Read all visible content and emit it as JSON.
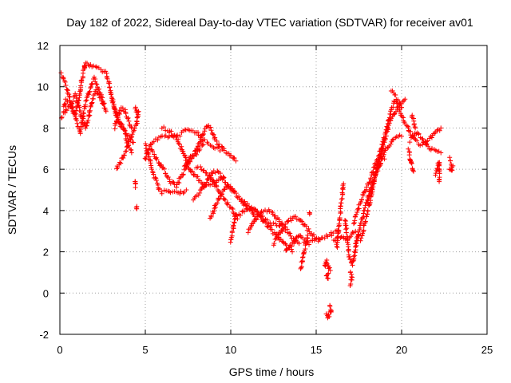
{
  "chart_data": {
    "type": "scatter",
    "title": "Day 182 of 2022, Sidereal Day-to-day VTEC variation (SDTVAR) for receiver av01",
    "xlabel": "GPS time / hours",
    "ylabel": "SDTVAR / TECUs",
    "xlim": [
      0,
      25
    ],
    "ylim": [
      -2,
      12
    ],
    "xticks": [
      0,
      5,
      10,
      15,
      20,
      25
    ],
    "yticks": [
      -2,
      0,
      2,
      4,
      6,
      8,
      10,
      12
    ],
    "xtick_labels": [
      "0",
      "5",
      "10",
      "15",
      "20",
      "25"
    ],
    "ytick_labels": [
      "-2",
      "0",
      "2",
      "4",
      "6",
      "8",
      "10",
      "12"
    ],
    "grid": true,
    "marker": "+",
    "color": "#ff0000",
    "series_tracks": [
      [
        [
          0.1,
          10.6
        ],
        [
          0.3,
          10.2
        ],
        [
          0.5,
          9.6
        ],
        [
          0.7,
          9.0
        ],
        [
          0.9,
          8.7
        ],
        [
          1.1,
          9.4
        ],
        [
          1.3,
          10.4
        ],
        [
          1.5,
          11.2
        ],
        [
          1.8,
          11.0
        ],
        [
          2.1,
          10.9
        ],
        [
          2.4,
          10.8
        ],
        [
          2.7,
          10.7
        ],
        [
          2.9,
          10.0
        ],
        [
          3.1,
          9.2
        ],
        [
          3.3,
          8.6
        ],
        [
          3.5,
          8.2
        ],
        [
          3.8,
          7.8
        ],
        [
          4.0,
          7.2
        ],
        [
          4.2,
          6.8
        ]
      ],
      [
        [
          0.1,
          8.5
        ],
        [
          0.3,
          8.8
        ],
        [
          0.5,
          9.0
        ],
        [
          0.7,
          9.2
        ],
        [
          0.9,
          9.6
        ],
        [
          1.1,
          9.0
        ],
        [
          1.3,
          8.4
        ],
        [
          1.5,
          8.0
        ],
        [
          1.7,
          8.6
        ],
        [
          1.9,
          9.4
        ],
        [
          2.1,
          9.8
        ],
        [
          2.3,
          9.6
        ],
        [
          2.5,
          9.2
        ],
        [
          2.7,
          8.8
        ]
      ],
      [
        [
          0.2,
          9.0
        ],
        [
          0.4,
          9.4
        ],
        [
          0.6,
          9.2
        ],
        [
          0.8,
          8.8
        ],
        [
          1.0,
          8.2
        ],
        [
          1.2,
          7.8
        ],
        [
          1.4,
          8.8
        ],
        [
          1.6,
          9.5
        ],
        [
          1.8,
          10.0
        ],
        [
          2.0,
          10.4
        ],
        [
          2.2,
          10.0
        ],
        [
          2.4,
          9.6
        ],
        [
          2.6,
          9.2
        ]
      ],
      [
        [
          3.1,
          9.2
        ],
        [
          3.3,
          8.8
        ],
        [
          3.5,
          8.3
        ],
        [
          3.7,
          8.0
        ],
        [
          3.9,
          7.7
        ],
        [
          4.1,
          7.5
        ],
        [
          4.3,
          7.3
        ]
      ],
      [
        [
          3.3,
          6.0
        ],
        [
          3.5,
          6.3
        ],
        [
          3.7,
          6.6
        ],
        [
          3.9,
          7.0
        ],
        [
          4.1,
          7.4
        ],
        [
          4.3,
          7.8
        ],
        [
          4.5,
          8.2
        ],
        [
          4.6,
          8.8
        ]
      ],
      [
        [
          3.2,
          8.0
        ],
        [
          3.4,
          8.6
        ],
        [
          3.6,
          9.0
        ],
        [
          3.8,
          8.8
        ],
        [
          4.0,
          8.4
        ],
        [
          4.2,
          8.0
        ]
      ],
      [
        [
          4.4,
          9.0
        ],
        [
          4.5,
          8.8
        ],
        [
          4.6,
          8.8
        ]
      ],
      [
        [
          4.5,
          4.1
        ],
        [
          4.5,
          4.2
        ]
      ],
      [
        [
          4.4,
          5.2
        ],
        [
          4.4,
          5.3
        ],
        [
          4.4,
          5.4
        ]
      ],
      [
        [
          5.0,
          6.5
        ],
        [
          5.2,
          7.0
        ],
        [
          5.4,
          7.3
        ],
        [
          5.6,
          7.4
        ],
        [
          5.9,
          7.5
        ],
        [
          6.2,
          7.6
        ],
        [
          6.5,
          7.6
        ],
        [
          6.8,
          7.6
        ],
        [
          7.0,
          7.7
        ],
        [
          7.2,
          7.8
        ],
        [
          7.5,
          7.9
        ],
        [
          7.8,
          7.9
        ],
        [
          8.0,
          7.8
        ],
        [
          8.2,
          7.6
        ],
        [
          8.4,
          7.4
        ],
        [
          8.6,
          7.3
        ],
        [
          8.8,
          7.2
        ],
        [
          9.0,
          7.1
        ],
        [
          9.3,
          7.0
        ],
        [
          9.6,
          6.9
        ],
        [
          9.9,
          6.8
        ],
        [
          10.1,
          6.6
        ],
        [
          10.3,
          6.4
        ]
      ],
      [
        [
          5.0,
          7.2
        ],
        [
          5.2,
          6.6
        ],
        [
          5.4,
          6.0
        ],
        [
          5.6,
          5.5
        ],
        [
          5.8,
          5.1
        ],
        [
          6.0,
          4.9
        ],
        [
          6.3,
          4.9
        ],
        [
          6.6,
          4.9
        ],
        [
          6.9,
          4.9
        ],
        [
          7.2,
          4.9
        ],
        [
          7.4,
          5.0
        ]
      ],
      [
        [
          5.3,
          7.0
        ],
        [
          5.6,
          6.6
        ],
        [
          5.9,
          6.2
        ],
        [
          6.2,
          5.8
        ],
        [
          6.5,
          5.4
        ],
        [
          6.8,
          5.2
        ],
        [
          7.0,
          5.5
        ],
        [
          7.3,
          5.9
        ],
        [
          7.5,
          6.3
        ],
        [
          7.8,
          6.6
        ],
        [
          8.1,
          6.9
        ],
        [
          8.4,
          7.2
        ]
      ],
      [
        [
          6.0,
          8.0
        ],
        [
          6.3,
          7.9
        ],
        [
          6.6,
          7.7
        ],
        [
          6.9,
          7.4
        ],
        [
          7.2,
          6.8
        ],
        [
          7.5,
          6.2
        ],
        [
          7.8,
          5.8
        ],
        [
          8.1,
          5.5
        ],
        [
          8.4,
          5.3
        ],
        [
          8.7,
          5.2
        ],
        [
          9.0,
          5.3
        ],
        [
          9.3,
          5.5
        ],
        [
          9.6,
          5.6
        ]
      ],
      [
        [
          7.3,
          6.1
        ],
        [
          7.6,
          6.5
        ],
        [
          7.9,
          6.8
        ],
        [
          8.2,
          7.4
        ],
        [
          8.5,
          7.9
        ],
        [
          8.7,
          8.1
        ],
        [
          8.9,
          7.8
        ],
        [
          9.1,
          7.4
        ],
        [
          9.3,
          7.2
        ],
        [
          9.6,
          7.0
        ]
      ],
      [
        [
          7.8,
          4.6
        ],
        [
          8.1,
          4.8
        ],
        [
          8.4,
          5.1
        ],
        [
          8.7,
          5.6
        ],
        [
          9.0,
          5.9
        ],
        [
          9.3,
          5.8
        ],
        [
          9.6,
          5.5
        ],
        [
          9.9,
          5.2
        ],
        [
          10.2,
          4.9
        ]
      ],
      [
        [
          8.0,
          6.1
        ],
        [
          8.3,
          6.0
        ],
        [
          8.6,
          5.8
        ],
        [
          8.9,
          5.5
        ],
        [
          9.2,
          5.1
        ],
        [
          9.5,
          4.7
        ],
        [
          9.8,
          4.3
        ],
        [
          10.1,
          4.0
        ],
        [
          10.4,
          3.6
        ]
      ],
      [
        [
          8.8,
          3.6
        ],
        [
          9.0,
          4.0
        ],
        [
          9.2,
          4.4
        ],
        [
          9.4,
          4.7
        ],
        [
          9.6,
          5.0
        ],
        [
          9.8,
          5.2
        ],
        [
          10.1,
          5.0
        ],
        [
          10.3,
          4.8
        ],
        [
          10.6,
          4.5
        ],
        [
          10.9,
          4.2
        ],
        [
          11.2,
          3.9
        ],
        [
          11.5,
          3.6
        ]
      ],
      [
        [
          10.0,
          2.5
        ],
        [
          10.1,
          3.0
        ],
        [
          10.2,
          3.4
        ],
        [
          10.3,
          3.8
        ]
      ],
      [
        [
          10.5,
          3.8
        ],
        [
          10.8,
          4.0
        ],
        [
          11.1,
          4.1
        ],
        [
          11.4,
          4.0
        ],
        [
          11.7,
          3.8
        ],
        [
          12.0,
          3.6
        ],
        [
          12.3,
          3.4
        ],
        [
          12.6,
          3.3
        ],
        [
          12.9,
          3.3
        ],
        [
          13.2,
          3.2
        ]
      ],
      [
        [
          10.6,
          4.5
        ],
        [
          10.9,
          4.3
        ],
        [
          11.2,
          4.1
        ],
        [
          11.5,
          3.9
        ],
        [
          11.8,
          3.6
        ],
        [
          12.1,
          3.3
        ],
        [
          12.4,
          3.0
        ],
        [
          12.7,
          2.8
        ],
        [
          13.0,
          2.5
        ],
        [
          13.3,
          2.2
        ],
        [
          13.6,
          2.0
        ]
      ],
      [
        [
          11.0,
          3.0
        ],
        [
          11.3,
          3.4
        ],
        [
          11.6,
          3.8
        ],
        [
          11.9,
          4.0
        ],
        [
          12.2,
          4.0
        ],
        [
          12.5,
          3.8
        ],
        [
          12.8,
          3.5
        ],
        [
          13.1,
          3.2
        ],
        [
          13.4,
          2.9
        ],
        [
          13.7,
          2.6
        ],
        [
          14.0,
          2.4
        ]
      ],
      [
        [
          12.5,
          2.4
        ],
        [
          12.8,
          2.8
        ],
        [
          13.1,
          3.2
        ],
        [
          13.4,
          3.5
        ],
        [
          13.7,
          3.7
        ],
        [
          14.0,
          3.6
        ],
        [
          14.3,
          3.3
        ],
        [
          14.6,
          3.0
        ],
        [
          14.9,
          2.7
        ],
        [
          15.2,
          2.6
        ]
      ],
      [
        [
          13.2,
          2.0
        ],
        [
          13.5,
          2.3
        ],
        [
          13.8,
          2.6
        ],
        [
          14.0,
          2.8
        ],
        [
          14.2,
          2.6
        ],
        [
          14.5,
          2.4
        ],
        [
          14.8,
          2.5
        ],
        [
          15.1,
          2.6
        ],
        [
          15.4,
          2.7
        ],
        [
          15.7,
          2.8
        ],
        [
          16.0,
          2.9
        ],
        [
          16.3,
          3.0
        ]
      ],
      [
        [
          14.1,
          1.2
        ],
        [
          14.2,
          1.6
        ],
        [
          14.3,
          2.0
        ],
        [
          14.4,
          2.4
        ],
        [
          14.5,
          2.8
        ]
      ],
      [
        [
          14.6,
          3.8
        ],
        [
          14.6,
          3.9
        ]
      ],
      [
        [
          15.5,
          1.3
        ],
        [
          15.6,
          1.6
        ],
        [
          15.7,
          1.4
        ],
        [
          15.8,
          1.1
        ],
        [
          15.6,
          0.9
        ],
        [
          15.7,
          0.7
        ]
      ],
      [
        [
          15.6,
          -1.0
        ],
        [
          15.7,
          -1.2
        ],
        [
          15.8,
          -1.0
        ],
        [
          15.9,
          -0.8
        ],
        [
          15.8,
          -0.6
        ]
      ],
      [
        [
          15.9,
          2.7
        ],
        [
          16.1,
          2.6
        ],
        [
          16.3,
          2.7
        ],
        [
          16.5,
          2.8
        ],
        [
          16.8,
          2.6
        ],
        [
          17.0,
          2.8
        ],
        [
          17.3,
          3.0
        ]
      ],
      [
        [
          16.2,
          2.2
        ],
        [
          16.3,
          3.0
        ],
        [
          16.4,
          3.8
        ],
        [
          16.5,
          4.6
        ],
        [
          16.6,
          5.3
        ]
      ],
      [
        [
          16.7,
          3.6
        ],
        [
          16.8,
          2.8
        ],
        [
          16.9,
          2.0
        ],
        [
          17.0,
          1.6
        ],
        [
          17.1,
          1.4
        ],
        [
          17.2,
          1.6
        ],
        [
          17.3,
          2.2
        ],
        [
          17.5,
          2.8
        ]
      ],
      [
        [
          17.0,
          0.4
        ],
        [
          17.1,
          0.8
        ],
        [
          17.0,
          1.0
        ]
      ],
      [
        [
          17.3,
          2.4
        ],
        [
          17.5,
          3.0
        ],
        [
          17.7,
          3.6
        ],
        [
          17.9,
          4.2
        ],
        [
          18.1,
          4.8
        ],
        [
          18.3,
          5.3
        ],
        [
          18.5,
          5.8
        ],
        [
          18.7,
          6.2
        ],
        [
          18.9,
          6.6
        ],
        [
          19.1,
          7.0
        ],
        [
          19.4,
          7.3
        ],
        [
          19.7,
          7.5
        ],
        [
          20.0,
          7.6
        ]
      ],
      [
        [
          17.2,
          3.4
        ],
        [
          17.4,
          4.0
        ],
        [
          17.6,
          4.4
        ],
        [
          17.8,
          4.8
        ],
        [
          18.0,
          5.2
        ],
        [
          18.2,
          5.6
        ],
        [
          18.4,
          6.1
        ],
        [
          18.6,
          6.5
        ],
        [
          18.8,
          7.0
        ]
      ],
      [
        [
          17.6,
          2.6
        ],
        [
          17.8,
          3.2
        ],
        [
          18.0,
          3.9
        ],
        [
          18.2,
          4.6
        ],
        [
          18.4,
          5.4
        ],
        [
          18.6,
          6.2
        ],
        [
          18.8,
          6.9
        ],
        [
          19.0,
          7.6
        ],
        [
          19.2,
          8.3
        ],
        [
          19.4,
          8.9
        ],
        [
          19.6,
          9.3
        ],
        [
          19.8,
          9.0
        ],
        [
          20.0,
          8.6
        ],
        [
          20.2,
          8.2
        ]
      ],
      [
        [
          18.0,
          4.4
        ],
        [
          18.2,
          5.0
        ],
        [
          18.4,
          5.6
        ],
        [
          18.6,
          6.2
        ],
        [
          18.8,
          6.8
        ],
        [
          19.0,
          7.4
        ],
        [
          19.2,
          8.0
        ],
        [
          19.4,
          8.5
        ],
        [
          19.6,
          8.8
        ],
        [
          19.8,
          9.0
        ],
        [
          20.0,
          9.2
        ],
        [
          20.2,
          9.4
        ]
      ],
      [
        [
          19.4,
          9.8
        ],
        [
          19.6,
          9.6
        ],
        [
          19.8,
          9.3
        ],
        [
          20.0,
          9.0
        ]
      ],
      [
        [
          18.6,
          6.0
        ],
        [
          18.8,
          6.4
        ],
        [
          19.0,
          6.5
        ]
      ],
      [
        [
          20.3,
          8.2
        ],
        [
          20.5,
          7.8
        ],
        [
          20.7,
          7.5
        ],
        [
          20.9,
          7.3
        ],
        [
          21.1,
          7.2
        ],
        [
          21.4,
          7.3
        ],
        [
          21.7,
          7.5
        ],
        [
          22.0,
          7.8
        ],
        [
          22.3,
          8.0
        ]
      ],
      [
        [
          20.5,
          7.4
        ],
        [
          20.7,
          7.6
        ],
        [
          20.9,
          7.8
        ],
        [
          21.1,
          7.6
        ],
        [
          21.3,
          7.4
        ],
        [
          21.5,
          7.2
        ],
        [
          21.7,
          7.0
        ],
        [
          21.9,
          6.9
        ],
        [
          22.1,
          6.8
        ],
        [
          22.3,
          6.8
        ]
      ],
      [
        [
          20.4,
          6.9
        ],
        [
          20.5,
          6.5
        ],
        [
          20.6,
          6.2
        ],
        [
          20.7,
          5.9
        ]
      ],
      [
        [
          20.6,
          8.6
        ],
        [
          20.7,
          8.3
        ],
        [
          20.8,
          8.0
        ]
      ],
      [
        [
          22.0,
          5.8
        ],
        [
          22.1,
          6.1
        ],
        [
          22.2,
          6.4
        ],
        [
          22.2,
          5.4
        ]
      ],
      [
        [
          22.8,
          6.5
        ],
        [
          22.9,
          6.3
        ],
        [
          23.0,
          6.1
        ],
        [
          22.9,
          5.9
        ],
        [
          22.8,
          6.0
        ]
      ]
    ]
  }
}
